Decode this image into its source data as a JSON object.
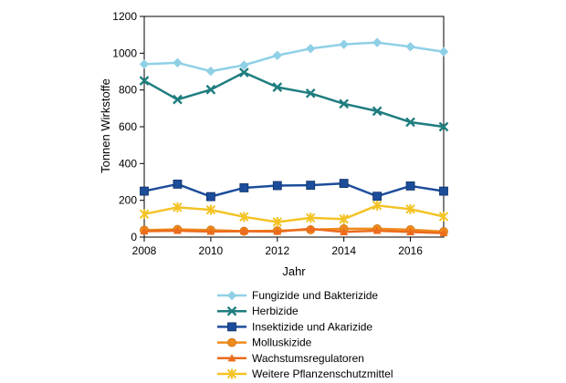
{
  "chart_data": {
    "type": "line",
    "xlabel": "Jahr",
    "ylabel": "Tonnen Wirkstoffe",
    "x": [
      2008,
      2009,
      2010,
      2011,
      2012,
      2013,
      2014,
      2015,
      2016,
      2017
    ],
    "xlim": [
      2008,
      2017
    ],
    "ylim": [
      0,
      1200
    ],
    "x_ticks": [
      2008,
      2010,
      2012,
      2014,
      2016
    ],
    "y_ticks": [
      0,
      200,
      400,
      600,
      800,
      1000,
      1200
    ],
    "grid": false,
    "legend_position": "bottom",
    "series": [
      {
        "name": "Fungizide und Bakterizide",
        "color": "#8fd0e6",
        "marker": "diamond",
        "values": [
          940,
          948,
          902,
          935,
          988,
          1025,
          1048,
          1058,
          1035,
          1008
        ]
      },
      {
        "name": "Herbizide",
        "color": "#1f7d7f",
        "marker": "x",
        "values": [
          850,
          748,
          802,
          895,
          815,
          782,
          725,
          685,
          625,
          600
        ]
      },
      {
        "name": "Insektizide und Akarizide",
        "color": "#1c4d9a",
        "marker": "square",
        "values": [
          250,
          288,
          220,
          268,
          280,
          282,
          292,
          222,
          278,
          250
        ]
      },
      {
        "name": "Molluskizide",
        "color": "#ee8b1c",
        "marker": "circle",
        "values": [
          38,
          42,
          38,
          32,
          35,
          40,
          45,
          45,
          40,
          30
        ]
      },
      {
        "name": "Wachstumsregulatoren",
        "color": "#ec6b1c",
        "marker": "triangle",
        "values": [
          32,
          35,
          30,
          32,
          30,
          45,
          28,
          35,
          28,
          22
        ]
      },
      {
        "name": "Weitere Pflanzenschutzmittel",
        "color": "#f3c325",
        "marker": "star",
        "values": [
          125,
          162,
          148,
          110,
          82,
          105,
          98,
          172,
          152,
          112
        ]
      }
    ]
  }
}
